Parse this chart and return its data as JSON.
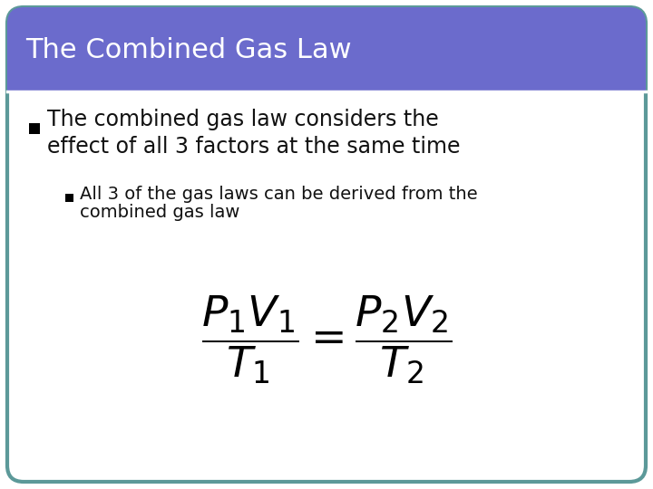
{
  "title": "The Combined Gas Law",
  "title_color": "#ffffff",
  "header_bar_color": "#6b6bcc",
  "body_bg_color": "#ffffff",
  "border_color": "#5c9999",
  "bullet1_text_line1": "The combined gas law considers the",
  "bullet1_text_line2": "effect of all 3 factors at the same time",
  "bullet1_color": "#000000",
  "bullet2_text_line1": "All 3 of the gas laws can be derived from the",
  "bullet2_text_line2": "combined gas law",
  "bullet2_color": "#000000",
  "formula": "$\\dfrac{P_1V_1}{T_1} = \\dfrac{P_2V_2}{T_2}$",
  "formula_fontsize": 34,
  "title_fontsize": 22,
  "bullet1_fontsize": 17,
  "bullet2_fontsize": 14,
  "separator_color": "#ffffff",
  "fig_width": 7.2,
  "fig_height": 5.4,
  "fig_dpi": 100
}
